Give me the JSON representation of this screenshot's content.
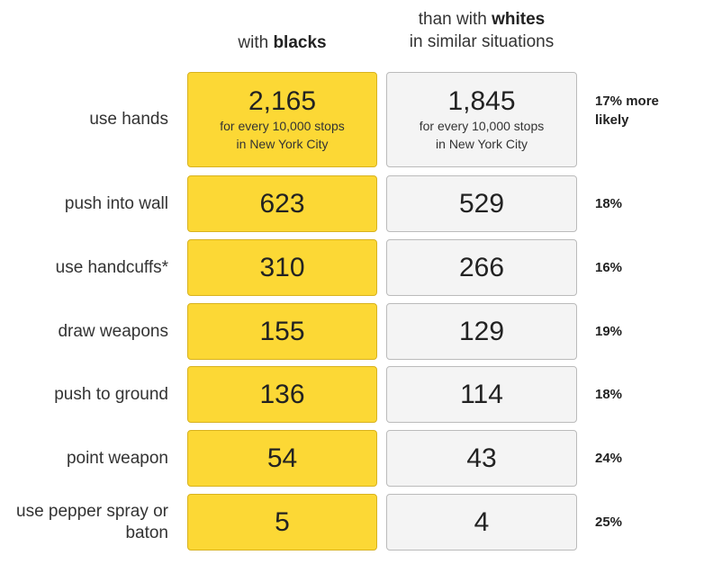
{
  "header": {
    "black": {
      "prefix": "with",
      "bold": "blacks"
    },
    "white": {
      "prefix": "than with",
      "bold": "whites",
      "line2": "in similar situations"
    }
  },
  "rows": [
    {
      "label": "use hands",
      "black": "2,165",
      "white": "1,845",
      "note": [
        "for every 10,000 stops",
        "in New York City"
      ],
      "difference": "17% more likely"
    },
    {
      "label": "push into wall",
      "black": "623",
      "white": "529",
      "difference": "18%"
    },
    {
      "label": "use handcuffs*",
      "black": "310",
      "white": "266",
      "difference": "16%"
    },
    {
      "label": "draw weapons",
      "black": "155",
      "white": "129",
      "difference": "19%"
    },
    {
      "label": "push to ground",
      "black": "136",
      "white": "114",
      "difference": "18%"
    },
    {
      "label": "point weapon",
      "black": "54",
      "white": "43",
      "difference": "24%"
    },
    {
      "label": "use pepper spray or baton",
      "black": "5",
      "white": "4",
      "difference": "25%"
    }
  ]
}
